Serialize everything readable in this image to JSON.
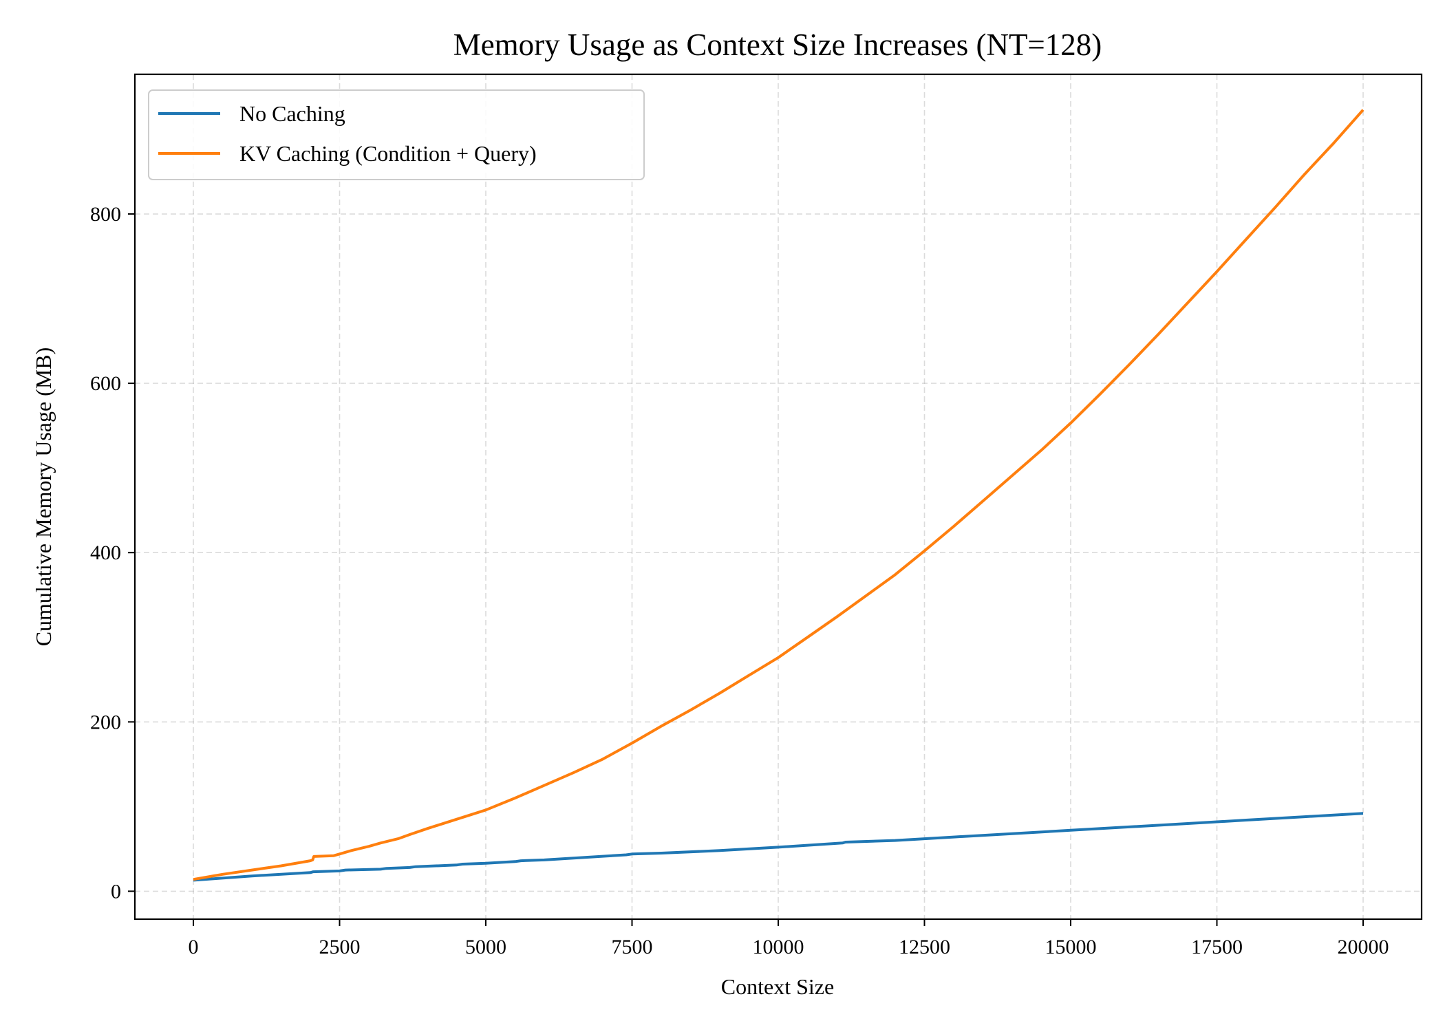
{
  "chart_data": {
    "type": "line",
    "title": "Memory Usage as Context Size Increases (NT=128)",
    "xlabel": "Context Size",
    "ylabel": "Cumulative Memory Usage (MB)",
    "xlim": [
      -1000,
      21000
    ],
    "ylim": [
      -33,
      965
    ],
    "xticks": [
      0,
      2500,
      5000,
      7500,
      10000,
      12500,
      15000,
      17500,
      20000
    ],
    "yticks": [
      0,
      200,
      400,
      600,
      800
    ],
    "grid": true,
    "legend_position": "top-left",
    "series": [
      {
        "name": "No Caching",
        "color": "#1f77b4",
        "x": [
          0,
          1000,
          2000,
          2050,
          2500,
          2600,
          3200,
          3300,
          3700,
          3800,
          4500,
          4600,
          5000,
          5500,
          5600,
          6000,
          7400,
          7500,
          8000,
          9000,
          10000,
          11100,
          11150,
          12000,
          13000,
          14000,
          15000,
          16000,
          17000,
          18000,
          19000,
          20000
        ],
        "y": [
          13,
          18,
          22,
          23,
          24,
          25,
          26,
          27,
          28,
          29,
          31,
          32,
          33,
          35,
          36,
          37,
          43,
          44,
          45,
          48,
          52,
          57,
          58,
          60,
          64,
          68,
          72,
          76,
          80,
          84,
          88,
          92
        ]
      },
      {
        "name": "KV Caching (Condition + Query)",
        "color": "#ff7f0e",
        "x": [
          0,
          500,
          1000,
          1500,
          2000,
          2040,
          2060,
          2400,
          2500,
          2700,
          3000,
          3200,
          3500,
          3700,
          4000,
          4500,
          5000,
          5500,
          6000,
          6500,
          7000,
          7500,
          8000,
          8500,
          9000,
          9500,
          10000,
          10500,
          11000,
          11500,
          12000,
          12500,
          13000,
          13500,
          14000,
          14500,
          15000,
          15500,
          16000,
          16500,
          17000,
          17500,
          18000,
          18500,
          19000,
          19500,
          20000
        ],
        "y": [
          14,
          20,
          25,
          30,
          36,
          37,
          41,
          42,
          44,
          48,
          53,
          57,
          62,
          67,
          74,
          85,
          96,
          110,
          125,
          140,
          156,
          175,
          195,
          214,
          234,
          255,
          276,
          300,
          324,
          349,
          374,
          402,
          431,
          461,
          491,
          521,
          553,
          587,
          622,
          658,
          695,
          732,
          770,
          808,
          847,
          884,
          923
        ]
      }
    ]
  }
}
